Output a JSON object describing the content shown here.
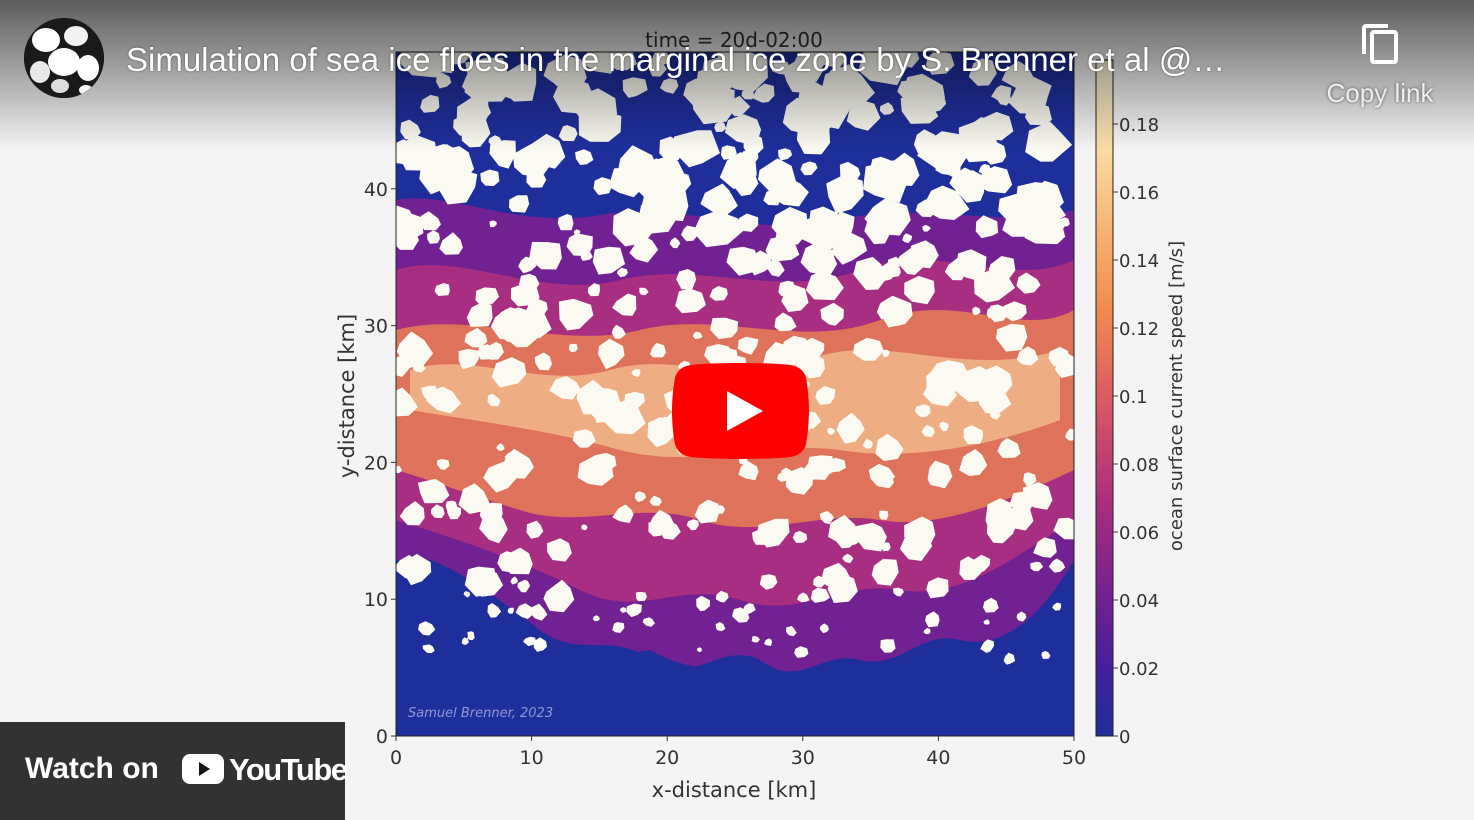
{
  "player": {
    "title": "Simulation of sea ice floes in the marginal ice zone by S. Brenner et al @…",
    "copy_link_label": "Copy link",
    "watch_on_label": "Watch on",
    "youtube_wordmark": "YouTube",
    "icons": [
      "channel-avatar",
      "copy-icon",
      "play-icon",
      "youtube-logo-icon"
    ],
    "colors": {
      "play_red": "#ff0000",
      "overlay": "#171717"
    }
  },
  "frame": {
    "time_label": "time = 20d-02:00",
    "watermark": "Samuel Brenner, 2023",
    "ylabel": "y-distance [km]",
    "xlabel": "x-distance [km]",
    "colorbar_label": "ocean surface current speed [m/s]"
  },
  "chart_data": {
    "type": "heatmap",
    "title": "time = 20d-02:00",
    "xlabel": "x-distance [km]",
    "ylabel": "y-distance [km]",
    "xlim": [
      0,
      50
    ],
    "ylim": [
      0,
      50
    ],
    "x_ticks": [
      "0",
      "10",
      "20",
      "30",
      "40",
      "50"
    ],
    "y_ticks": [
      "0",
      "10",
      "20",
      "30",
      "40"
    ],
    "colorbar": {
      "label": "ocean surface current speed [m/s]",
      "range": [
        0,
        0.2
      ],
      "ticks": [
        "0",
        "0.02",
        "0.04",
        "0.06",
        "0.08",
        "0.1",
        "0.12",
        "0.14",
        "0.16",
        "0.18"
      ],
      "colormap": [
        "#1e2f9c",
        "#44209a",
        "#7a2090",
        "#b0307c",
        "#dc5a62",
        "#f28a4e",
        "#f8b774",
        "#fcdfa8",
        "#fffbe0"
      ]
    }
  }
}
